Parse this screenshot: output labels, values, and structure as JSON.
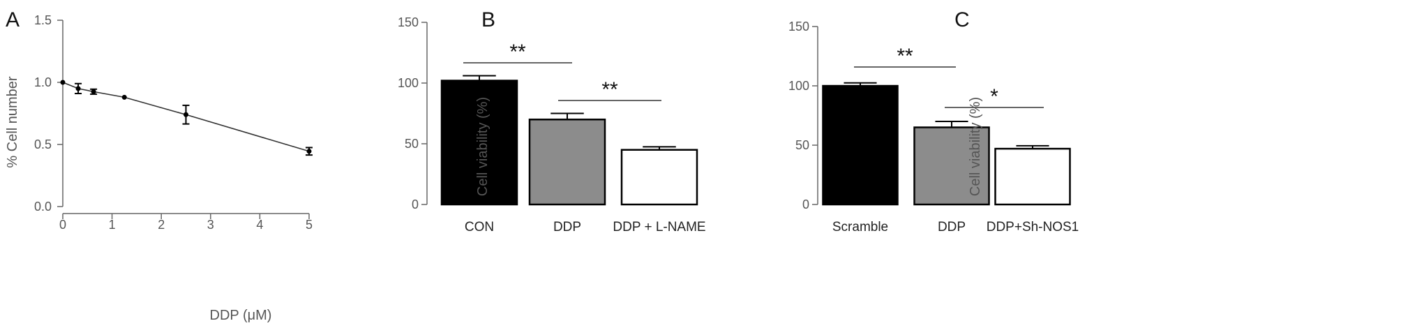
{
  "chart_data": [
    {
      "panel": "A",
      "type": "line",
      "xlabel": "DDP (μM)",
      "ylabel": "% Cell number",
      "xlim": [
        0,
        5
      ],
      "ylim": [
        0,
        1.5
      ],
      "xticks": [
        "0",
        "1",
        "2",
        "3",
        "4",
        "5"
      ],
      "yticks": [
        "0.0",
        "0.5",
        "1.0",
        "1.5"
      ],
      "series": [
        {
          "x": [
            0,
            0.3125,
            0.625,
            1.25,
            2.5,
            5
          ],
          "y": [
            1.0,
            0.95,
            0.925,
            0.88,
            0.74,
            0.445
          ],
          "err": [
            0.0,
            0.04,
            0.02,
            0.0,
            0.075,
            0.03
          ]
        }
      ]
    },
    {
      "panel": "B",
      "type": "bar",
      "ylabel": "Cell viability (%)",
      "ylim": [
        0,
        150
      ],
      "yticks": [
        "0",
        "50",
        "100",
        "150"
      ],
      "categories": [
        "CON",
        "DDP",
        "DDP + L-NAME"
      ],
      "values": [
        102,
        70,
        45
      ],
      "errors": [
        4,
        5,
        2.5
      ],
      "colors": [
        "#000000",
        "#8c8c8c",
        "#ffffff"
      ],
      "significance": [
        {
          "from": 0,
          "to": 1,
          "label": "**"
        },
        {
          "from": 1,
          "to": 2,
          "label": "**"
        }
      ]
    },
    {
      "panel": "C",
      "type": "bar",
      "ylabel": "Cell viability (%)",
      "ylim": [
        0,
        150
      ],
      "yticks": [
        "0",
        "50",
        "100",
        "150"
      ],
      "categories": [
        "Scramble",
        "DDP",
        "DDP+Sh-NOS1"
      ],
      "values": [
        100,
        65,
        47
      ],
      "errors": [
        2.5,
        5,
        2.5
      ],
      "colors": [
        "#000000",
        "#8c8c8c",
        "#ffffff"
      ],
      "significance": [
        {
          "from": 0,
          "to": 1,
          "label": "**"
        },
        {
          "from": 1,
          "to": 2,
          "label": "*"
        }
      ]
    }
  ]
}
